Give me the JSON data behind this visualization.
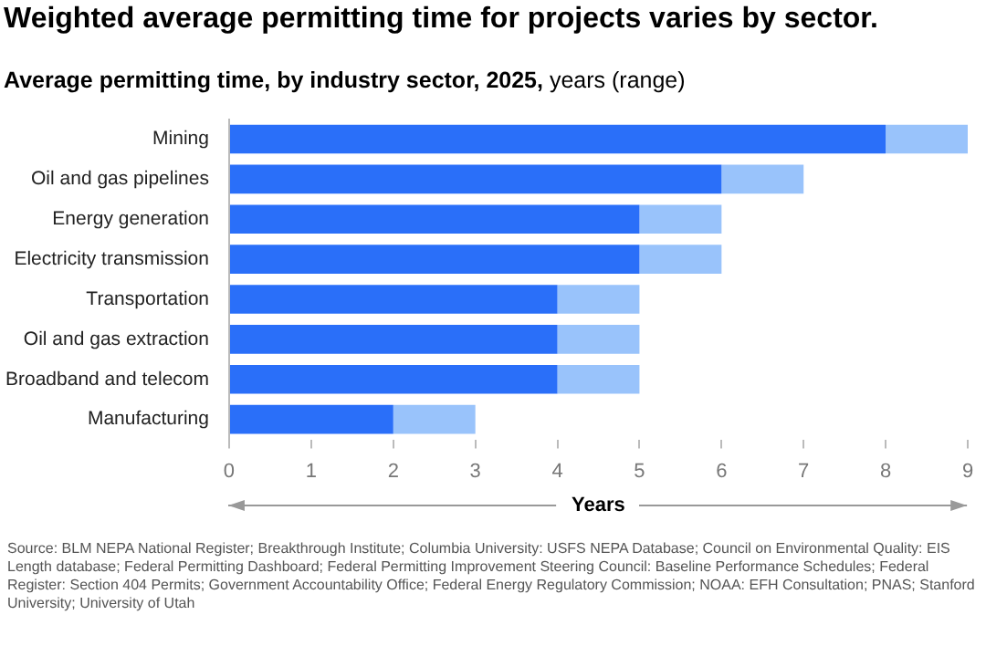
{
  "chart_data": {
    "type": "bar",
    "orientation": "horizontal",
    "stacked": true,
    "title": "Weighted average permitting time for projects varies by sector.",
    "subtitle": "Average permitting time, by industry sector, 2025, years (range)",
    "xlabel": "Years",
    "categories": [
      "Mining",
      "Oil and gas pipelines",
      "Energy generation",
      "Electricity transmission",
      "Transportation",
      "Oil and gas extraction",
      "Broadband and telecom",
      "Manufacturing"
    ],
    "series": [
      {
        "color": "#2a6ff9",
        "values": [
          8,
          6,
          5,
          5,
          4,
          4,
          4,
          2
        ]
      },
      {
        "color": "#99c3fb",
        "values": [
          1,
          1,
          1,
          1,
          1,
          1,
          1,
          1
        ]
      }
    ],
    "xlim": [
      0,
      9
    ],
    "xticks": [
      0,
      1,
      2,
      3,
      4,
      5,
      6,
      7,
      8,
      9
    ],
    "grid": false,
    "legend": false,
    "annotations": [
      "Source: BLM NEPA National Register; Breakthrough Institute; Columbia University: USFS NEPA Database; Council on Environmental Quality: EIS Length database; Federal Permitting Dashboard; Federal Permitting Improvement Steering Council: Baseline Performance Schedules; Federal Register: Section 404 Permits; Government Accountability Office; Federal Energy Regulatory Commission; NOAA: EFH Consultation; PNAS; Stanford University; University of Utah"
    ]
  }
}
